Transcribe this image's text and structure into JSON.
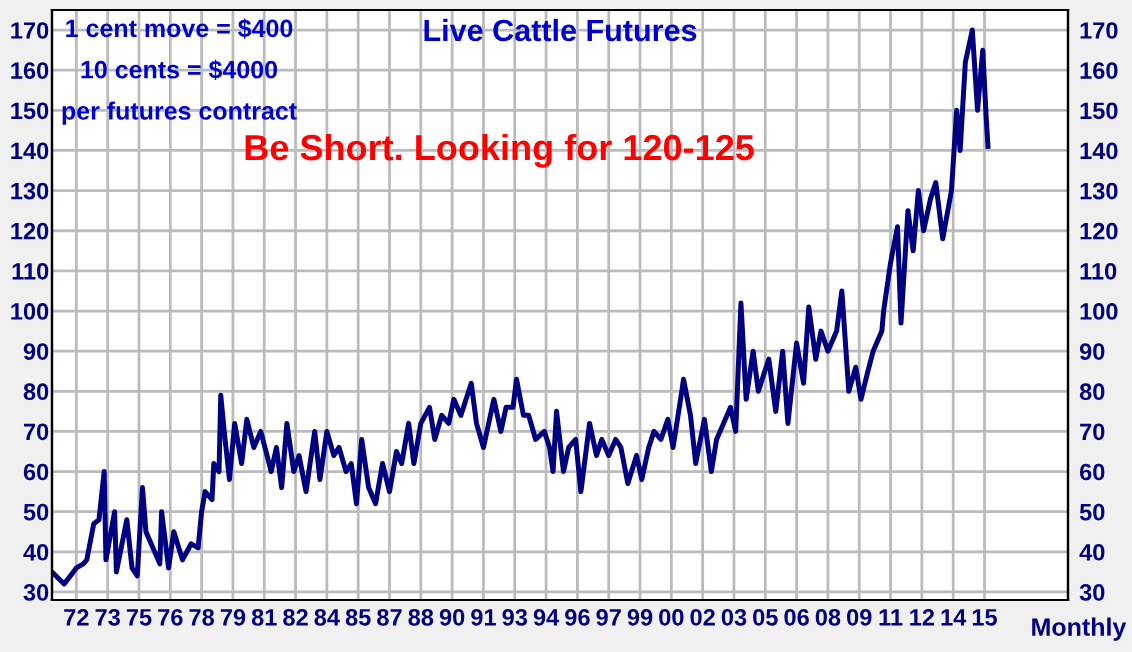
{
  "chart_data": {
    "type": "line",
    "title": "Live Cattle Futures",
    "xlabel": "Monthly",
    "annotations": [
      "1 cent move = $400",
      "10 cents = $4000",
      "per futures contract",
      "Be Short. Looking for 120-125"
    ],
    "series": [
      {
        "color": "#000080",
        "x": [
          "1970-11",
          "1971-06",
          "1972-01",
          "1972-05",
          "1972-07",
          "1972-11",
          "1973-02",
          "1973-05",
          "1973-06",
          "1973-11",
          "1973-12",
          "1974-06",
          "1974-09",
          "1974-12",
          "1975-03",
          "1975-05",
          "1975-08",
          "1976-01",
          "1976-02",
          "1976-06",
          "1976-09",
          "1977-02",
          "1977-07",
          "1977-11",
          "1978-01",
          "1978-03",
          "1978-07",
          "1978-08",
          "1978-11",
          "1978-12",
          "1979-02",
          "1979-05",
          "1979-08",
          "1979-12",
          "1980-03",
          "1980-07",
          "1980-11",
          "1981-05",
          "1981-08",
          "1981-11",
          "1982-02",
          "1982-06",
          "1982-09",
          "1983-01",
          "1983-06",
          "1983-09",
          "1984-01",
          "1984-05",
          "1984-08",
          "1984-12",
          "1985-03",
          "1985-06",
          "1985-09",
          "1986-01",
          "1986-05",
          "1986-09",
          "1987-01",
          "1987-05",
          "1987-08",
          "1987-12",
          "1988-03",
          "1988-07",
          "1988-12",
          "1989-03",
          "1989-07",
          "1989-11",
          "1990-02",
          "1990-06",
          "1990-12",
          "1991-03",
          "1991-07",
          "1992-01",
          "1992-05",
          "1992-08",
          "1992-12",
          "1993-02",
          "1993-06",
          "1993-09",
          "1994-01",
          "1994-06",
          "1994-09",
          "1994-11",
          "1995-01",
          "1995-05",
          "1995-08",
          "1995-12",
          "1996-03",
          "1996-08",
          "1996-12",
          "1997-03",
          "1997-07",
          "1997-11",
          "1998-02",
          "1998-06",
          "1998-11",
          "1999-02",
          "1999-06",
          "1999-09",
          "2000-01",
          "2000-05",
          "2000-08",
          "2001-01",
          "2001-02",
          "2001-06",
          "2001-09",
          "2002-02",
          "2002-06",
          "2002-09",
          "2003-01",
          "2003-05",
          "2003-08",
          "2003-11",
          "2004-02",
          "2004-06",
          "2004-09",
          "2005-03",
          "2005-07",
          "2005-11",
          "2006-02",
          "2006-07",
          "2006-11",
          "2007-02",
          "2007-06",
          "2007-09",
          "2008-01",
          "2008-06",
          "2008-09",
          "2009-01",
          "2009-05",
          "2009-08",
          "2009-12",
          "2010-03",
          "2010-08",
          "2010-09",
          "2011-01",
          "2011-05",
          "2011-07",
          "2011-11",
          "2012-02",
          "2012-05",
          "2012-08",
          "2012-12",
          "2013-03",
          "2013-07",
          "2013-12",
          "2014-03",
          "2014-05",
          "2014-08",
          "2014-12",
          "2015-03",
          "2015-06",
          "2015-08",
          "2015-09"
        ],
        "values": [
          35,
          32,
          36,
          37,
          38,
          47,
          48,
          60,
          38,
          50,
          35,
          48,
          36,
          34,
          56,
          45,
          42,
          37,
          50,
          36,
          45,
          38,
          42,
          41,
          50,
          55,
          53,
          62,
          60,
          79,
          70,
          58,
          72,
          62,
          73,
          66,
          70,
          60,
          66,
          56,
          72,
          60,
          64,
          55,
          70,
          58,
          70,
          64,
          66,
          60,
          62,
          52,
          68,
          56,
          52,
          62,
          55,
          65,
          62,
          72,
          62,
          72,
          76,
          68,
          74,
          72,
          78,
          74,
          82,
          72,
          66,
          78,
          70,
          76,
          76,
          83,
          74,
          74,
          68,
          70,
          66,
          60,
          75,
          60,
          66,
          68,
          55,
          72,
          64,
          68,
          64,
          68,
          66,
          57,
          64,
          58,
          66,
          70,
          68,
          73,
          66,
          80,
          83,
          74,
          62,
          73,
          60,
          68,
          72,
          76,
          70,
          102,
          78,
          90,
          80,
          88,
          75,
          90,
          72,
          92,
          82,
          101,
          88,
          95,
          90,
          95,
          105,
          80,
          86,
          78,
          85,
          90,
          95,
          100,
          112,
          121,
          97,
          125,
          115,
          130,
          120,
          128,
          132,
          118,
          130,
          150,
          140,
          162,
          170,
          150,
          165,
          148,
          141
        ]
      }
    ],
    "xlim": [
      "1970-11",
      "2019-07"
    ],
    "xticks": [
      {
        "value": "1972-01",
        "label": "72"
      },
      {
        "value": "1973-07",
        "label": "73"
      },
      {
        "value": "1975-01",
        "label": "75"
      },
      {
        "value": "1976-07",
        "label": "76"
      },
      {
        "value": "1978-01",
        "label": "78"
      },
      {
        "value": "1979-07",
        "label": "79"
      },
      {
        "value": "1981-01",
        "label": "81"
      },
      {
        "value": "1982-07",
        "label": "82"
      },
      {
        "value": "1984-01",
        "label": "84"
      },
      {
        "value": "1985-07",
        "label": "85"
      },
      {
        "value": "1987-01",
        "label": "87"
      },
      {
        "value": "1988-07",
        "label": "88"
      },
      {
        "value": "1990-01",
        "label": "90"
      },
      {
        "value": "1991-07",
        "label": "91"
      },
      {
        "value": "1993-01",
        "label": "93"
      },
      {
        "value": "1994-07",
        "label": "94"
      },
      {
        "value": "1996-01",
        "label": "96"
      },
      {
        "value": "1997-07",
        "label": "97"
      },
      {
        "value": "1999-01",
        "label": "99"
      },
      {
        "value": "2000-07",
        "label": "00"
      },
      {
        "value": "2002-01",
        "label": "02"
      },
      {
        "value": "2003-07",
        "label": "03"
      },
      {
        "value": "2005-01",
        "label": "05"
      },
      {
        "value": "2006-07",
        "label": "06"
      },
      {
        "value": "2008-01",
        "label": "08"
      },
      {
        "value": "2009-07",
        "label": "09"
      },
      {
        "value": "2011-01",
        "label": "11"
      },
      {
        "value": "2012-07",
        "label": "12"
      },
      {
        "value": "2014-01",
        "label": "14"
      },
      {
        "value": "2015-07",
        "label": "15"
      }
    ],
    "ylim": [
      28,
      175
    ],
    "yticks": [
      170,
      160,
      150,
      140,
      130,
      120,
      110,
      100,
      90,
      80,
      70,
      60,
      50,
      40,
      30
    ],
    "y2lim": [
      28,
      175
    ],
    "y2ticks": [
      170,
      160,
      150,
      140,
      130,
      120,
      110,
      100,
      90,
      80,
      70,
      60,
      50,
      40,
      30
    ],
    "grid": true,
    "line_style": "solid",
    "marker": "none"
  }
}
